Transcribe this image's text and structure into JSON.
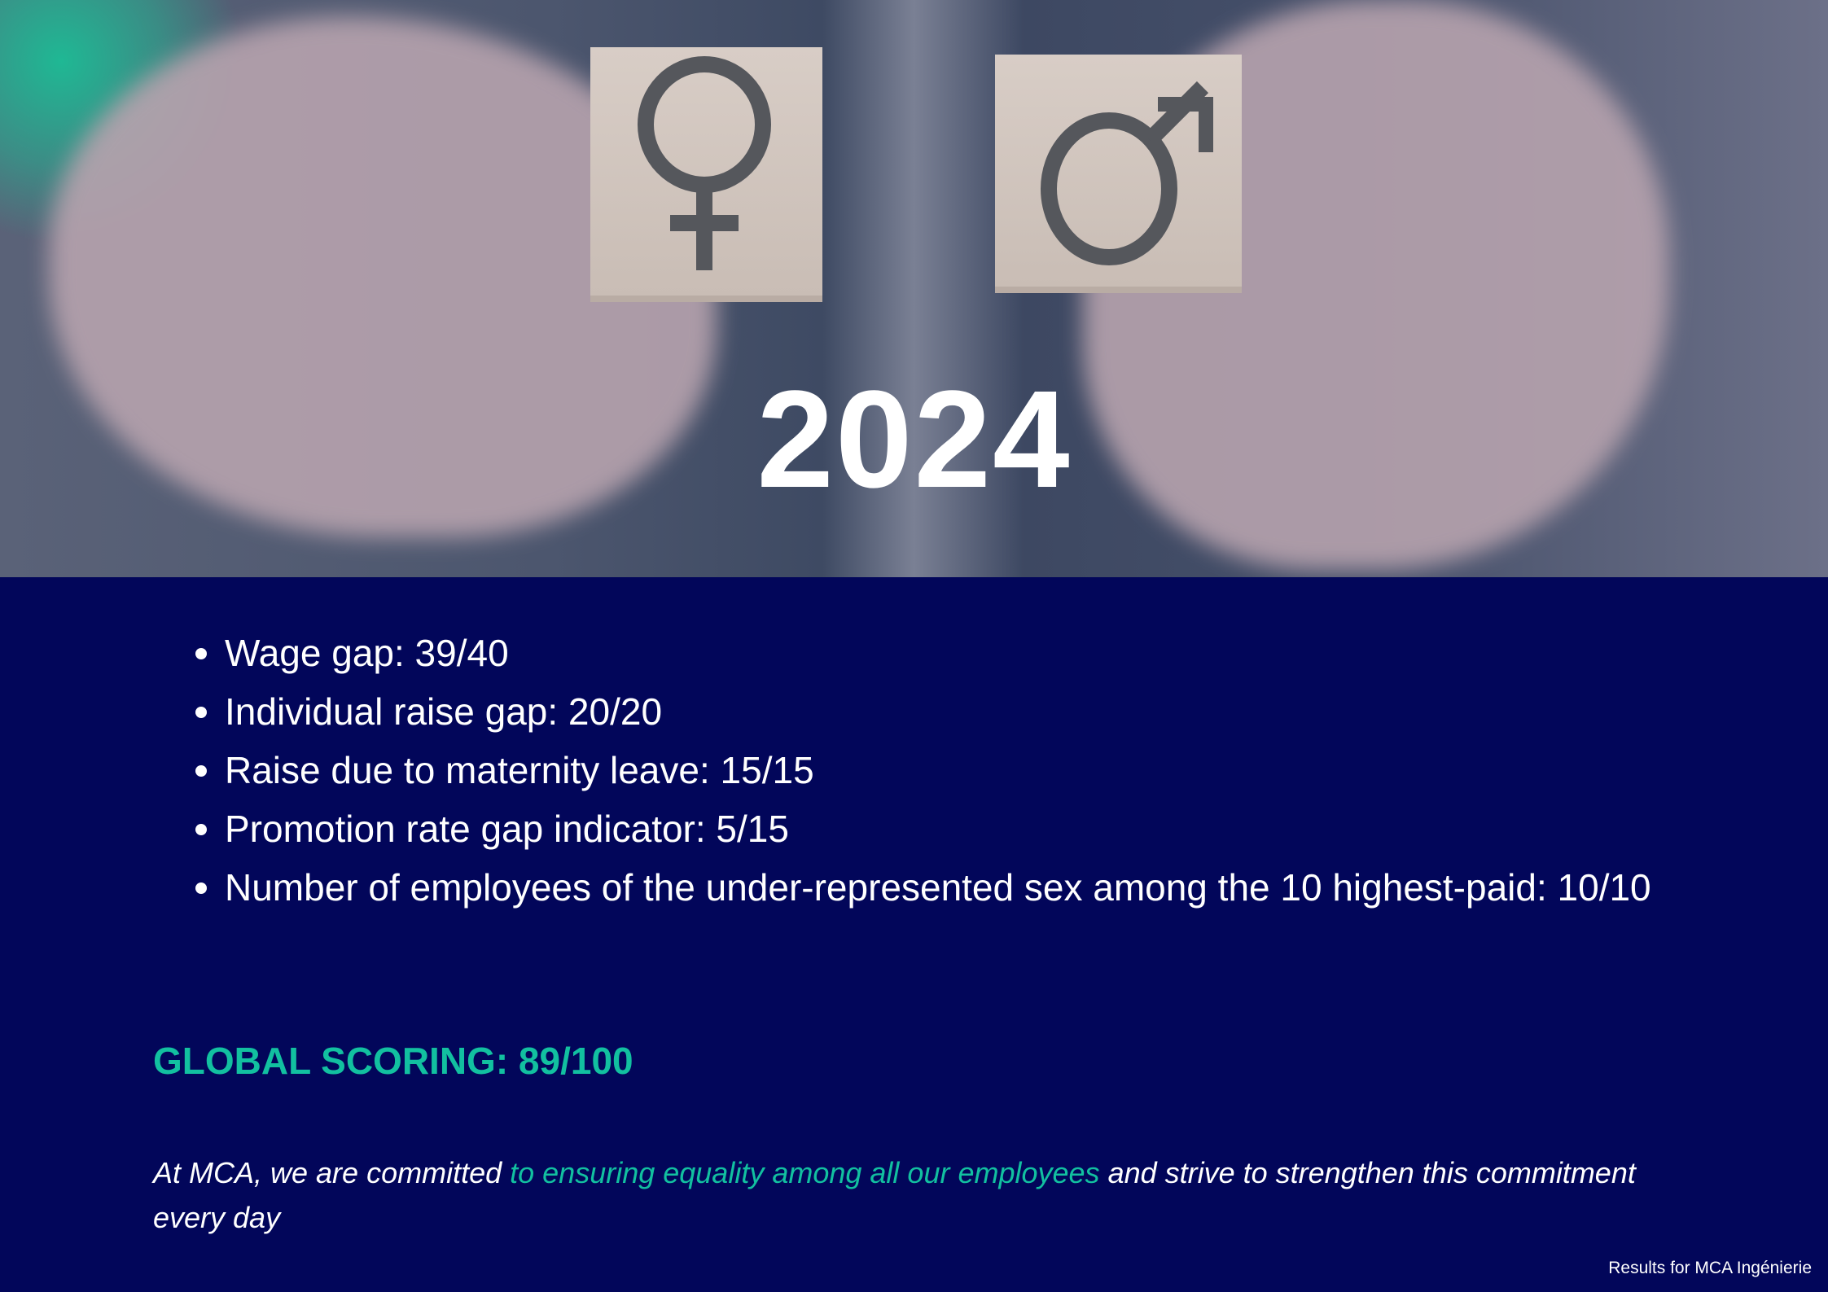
{
  "hero": {
    "year": "2024",
    "female_symbol": "female-symbol-icon",
    "male_symbol": "male-symbol-icon"
  },
  "indicators": [
    "Wage gap: 39/40",
    "Individual raise gap: 20/20",
    "Raise due to maternity leave: 15/15",
    "Promotion rate gap indicator: 5/15",
    "Number of employees of the under-represented sex among the 10 highest-paid: 10/10"
  ],
  "global_scoring": "GLOBAL SCORING: 89/100",
  "statement": {
    "before": "At MCA, we are committed ",
    "highlight": "to ensuring equality among all our employees",
    "after": " and strive to strengthen this commitment every day"
  },
  "footer": "Results for MCA Ingénierie",
  "colors": {
    "background": "#02065a",
    "accent": "#12c0a0",
    "text": "#ffffff"
  }
}
